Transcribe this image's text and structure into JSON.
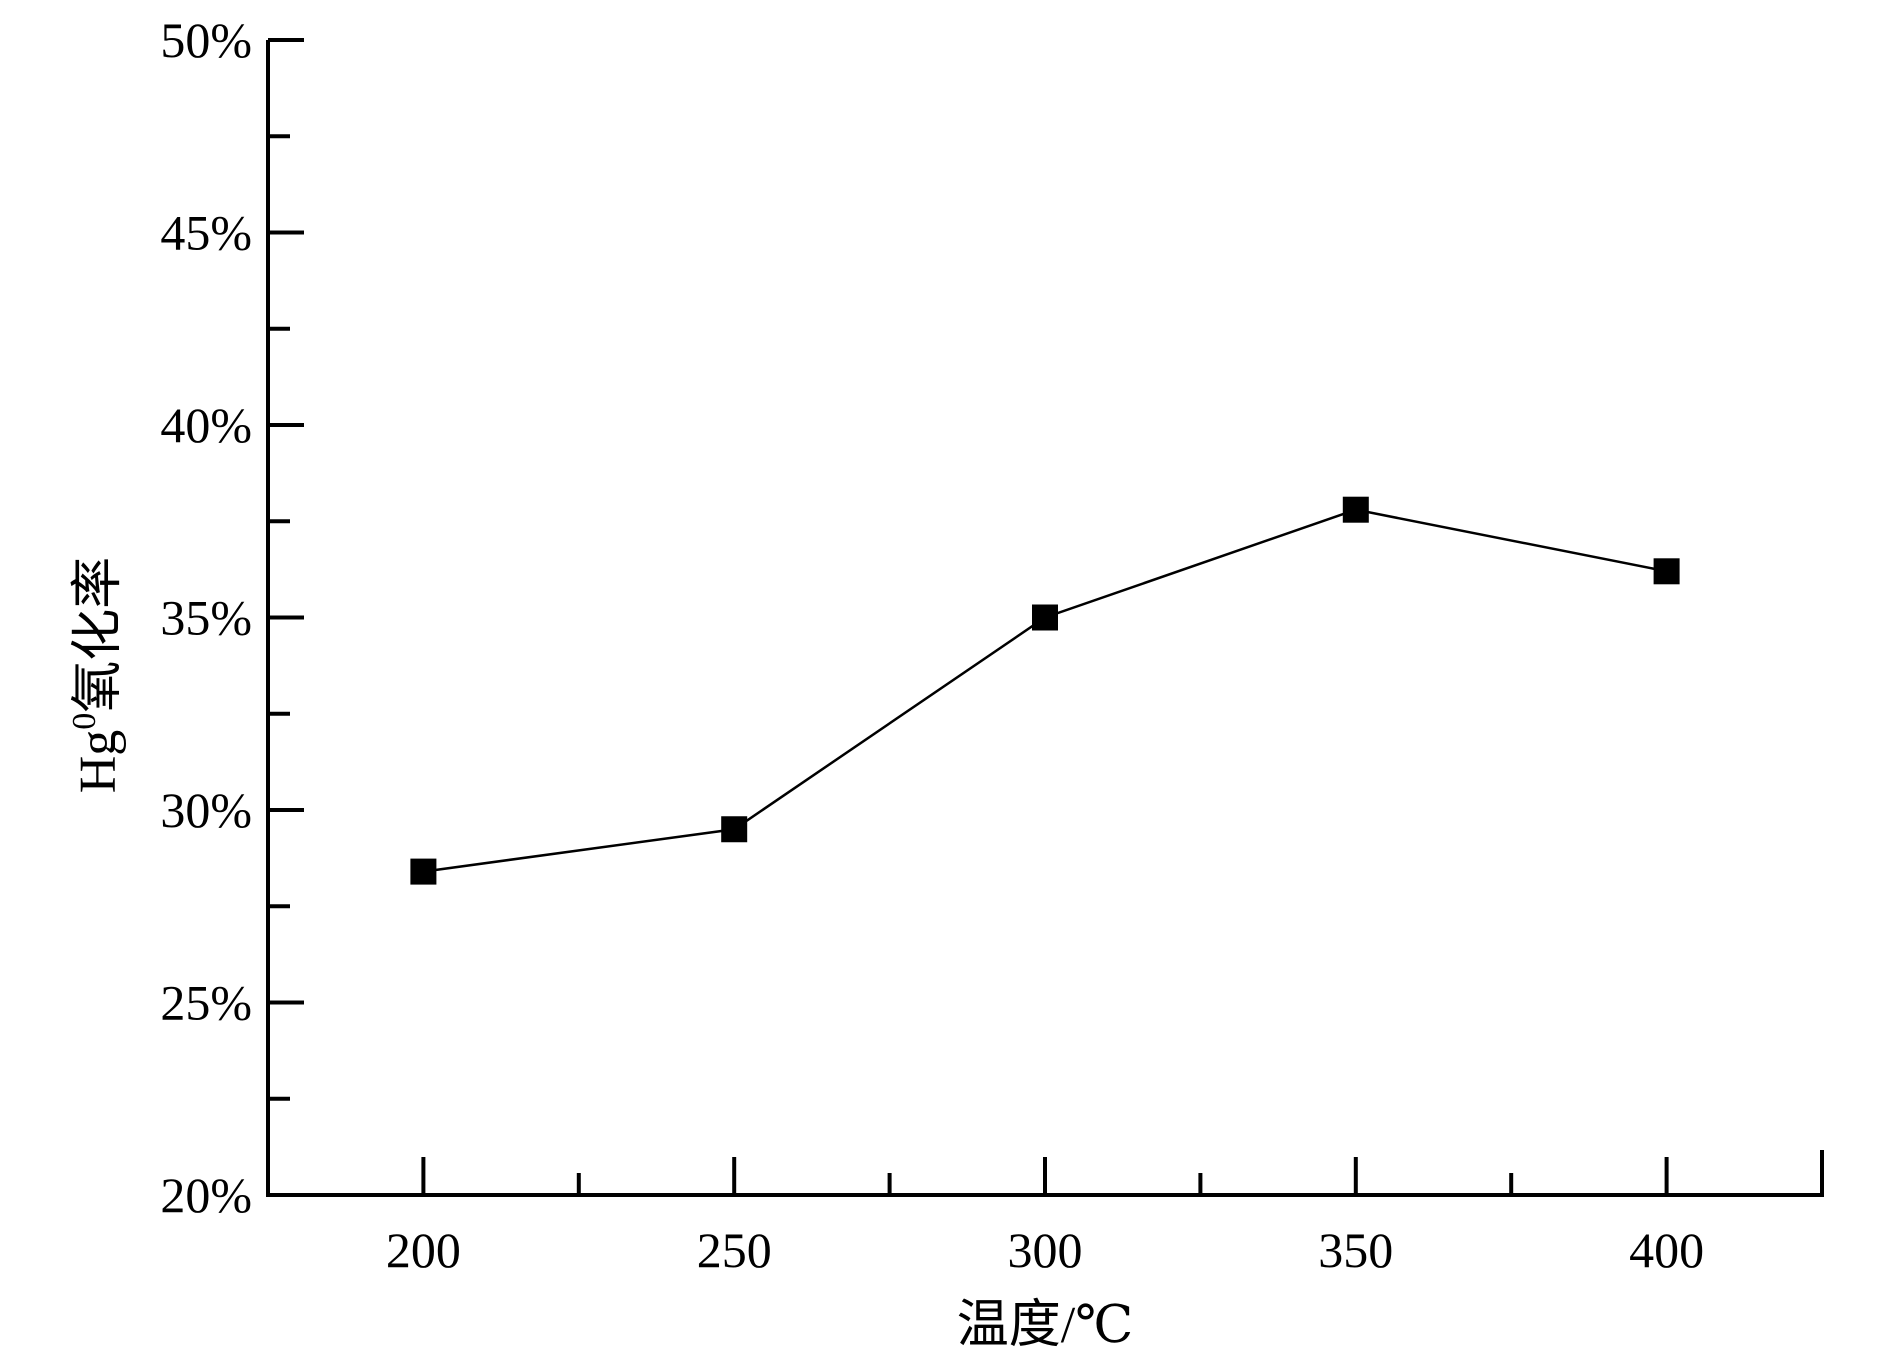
{
  "chart_data": {
    "type": "line",
    "x": [
      200,
      250,
      300,
      350,
      400
    ],
    "y": [
      28.4,
      29.5,
      35.0,
      37.8,
      36.2
    ],
    "xlim": [
      175,
      425
    ],
    "ylim": [
      20,
      50
    ],
    "x_ticks": [
      200,
      250,
      300,
      350,
      400
    ],
    "x_tick_labels": [
      "200",
      "250",
      "300",
      "350",
      "400"
    ],
    "x_minor_ticks": [
      225,
      275,
      325,
      375
    ],
    "y_ticks": [
      20,
      25,
      30,
      35,
      40,
      45,
      50
    ],
    "y_tick_labels": [
      "20%",
      "25%",
      "30%",
      "35%",
      "40%",
      "45%",
      "50%"
    ],
    "y_minor_ticks": [
      22.5,
      27.5,
      32.5,
      37.5,
      42.5,
      47.5
    ],
    "xlabel": "温度/℃",
    "ylabel": {
      "base": "Hg",
      "superscript": "0",
      "rest": "氧化率"
    },
    "marker": "square",
    "color": "#000000",
    "grid": false,
    "legend": "none"
  }
}
